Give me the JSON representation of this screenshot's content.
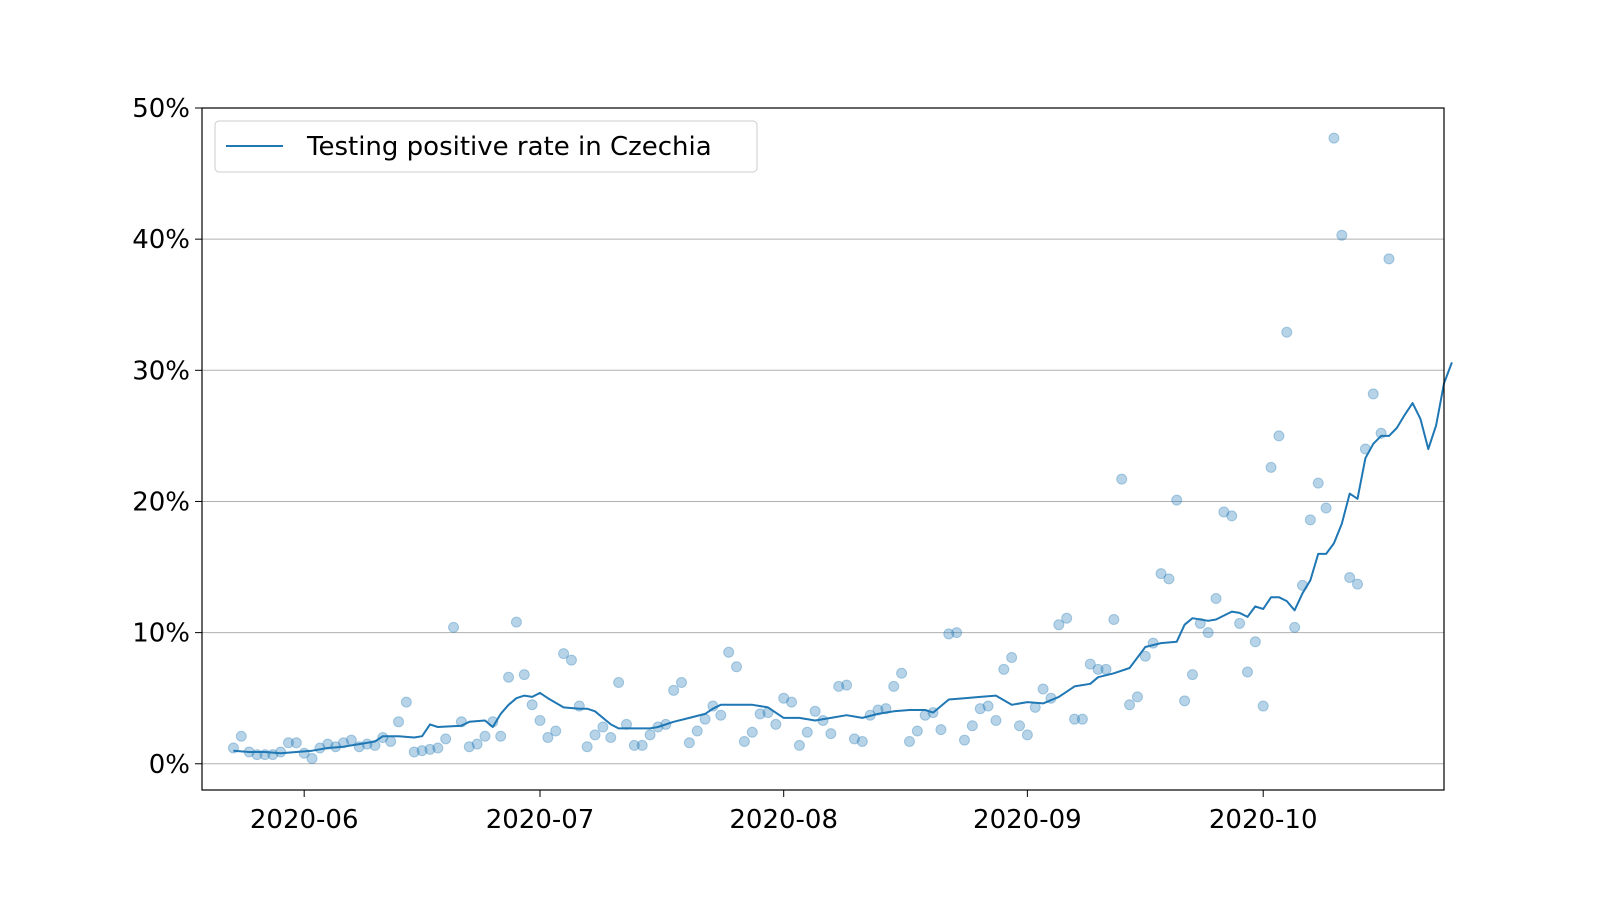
{
  "chart_data": {
    "type": "line",
    "title": "",
    "xlabel": "",
    "ylabel": "",
    "ylim": [
      -0.02,
      0.5
    ],
    "xlim": [
      "2020-05-19",
      "2020-10-24"
    ],
    "grid": {
      "y": true,
      "x": false
    },
    "legend": {
      "position": "upper-left",
      "entries": [
        "Testing positive rate in Czechia"
      ]
    },
    "x_ticks": [
      "2020-06-01",
      "2020-07-01",
      "2020-08-01",
      "2020-09-01",
      "2020-10-01"
    ],
    "x_tick_labels": [
      "2020-06",
      "2020-07",
      "2020-08",
      "2020-09",
      "2020-10"
    ],
    "y_ticks": [
      0,
      0.1,
      0.2,
      0.3,
      0.4,
      0.5
    ],
    "y_tick_labels": [
      "0%",
      "10%",
      "20%",
      "30%",
      "40%",
      "50%"
    ],
    "colors": {
      "series": "#1f77b4",
      "grid": "#b0b0b0",
      "axes": "#000000"
    },
    "series": [
      {
        "name": "Testing positive rate in Czechia",
        "kind": "line",
        "points": [
          [
            "2020-05-23",
            0.01
          ],
          [
            "2020-05-25",
            0.009
          ],
          [
            "2020-05-27",
            0.009
          ],
          [
            "2020-05-29",
            0.008
          ],
          [
            "2020-05-31",
            0.009
          ],
          [
            "2020-06-02",
            0.01
          ],
          [
            "2020-06-04",
            0.012
          ],
          [
            "2020-06-06",
            0.013
          ],
          [
            "2020-06-08",
            0.015
          ],
          [
            "2020-06-10",
            0.017
          ],
          [
            "2020-06-11",
            0.021
          ],
          [
            "2020-06-13",
            0.021
          ],
          [
            "2020-06-15",
            0.02
          ],
          [
            "2020-06-16",
            0.021
          ],
          [
            "2020-06-17",
            0.03
          ],
          [
            "2020-06-18",
            0.028
          ],
          [
            "2020-06-21",
            0.029
          ],
          [
            "2020-06-22",
            0.032
          ],
          [
            "2020-06-24",
            0.033
          ],
          [
            "2020-06-25",
            0.028
          ],
          [
            "2020-06-26",
            0.038
          ],
          [
            "2020-06-27",
            0.045
          ],
          [
            "2020-06-28",
            0.05
          ],
          [
            "2020-06-29",
            0.052
          ],
          [
            "2020-06-30",
            0.051
          ],
          [
            "2020-07-01",
            0.054
          ],
          [
            "2020-07-02",
            0.05
          ],
          [
            "2020-07-04",
            0.043
          ],
          [
            "2020-07-06",
            0.042
          ],
          [
            "2020-07-07",
            0.042
          ],
          [
            "2020-07-08",
            0.04
          ],
          [
            "2020-07-10",
            0.03
          ],
          [
            "2020-07-11",
            0.027
          ],
          [
            "2020-07-13",
            0.027
          ],
          [
            "2020-07-15",
            0.027
          ],
          [
            "2020-07-16",
            0.028
          ],
          [
            "2020-07-18",
            0.032
          ],
          [
            "2020-07-20",
            0.035
          ],
          [
            "2020-07-22",
            0.038
          ],
          [
            "2020-07-23",
            0.042
          ],
          [
            "2020-07-24",
            0.045
          ],
          [
            "2020-07-26",
            0.045
          ],
          [
            "2020-07-28",
            0.045
          ],
          [
            "2020-07-30",
            0.043
          ],
          [
            "2020-08-01",
            0.035
          ],
          [
            "2020-08-03",
            0.035
          ],
          [
            "2020-08-05",
            0.033
          ],
          [
            "2020-08-07",
            0.035
          ],
          [
            "2020-08-09",
            0.037
          ],
          [
            "2020-08-11",
            0.035
          ],
          [
            "2020-08-13",
            0.038
          ],
          [
            "2020-08-15",
            0.04
          ],
          [
            "2020-08-17",
            0.041
          ],
          [
            "2020-08-19",
            0.041
          ],
          [
            "2020-08-20",
            0.039
          ],
          [
            "2020-08-22",
            0.049
          ],
          [
            "2020-08-24",
            0.05
          ],
          [
            "2020-08-26",
            0.051
          ],
          [
            "2020-08-28",
            0.052
          ],
          [
            "2020-08-30",
            0.045
          ],
          [
            "2020-09-01",
            0.047
          ],
          [
            "2020-09-03",
            0.046
          ],
          [
            "2020-09-05",
            0.051
          ],
          [
            "2020-09-07",
            0.059
          ],
          [
            "2020-09-09",
            0.061
          ],
          [
            "2020-09-10",
            0.066
          ],
          [
            "2020-09-12",
            0.069
          ],
          [
            "2020-09-14",
            0.073
          ],
          [
            "2020-09-16",
            0.089
          ],
          [
            "2020-09-18",
            0.092
          ],
          [
            "2020-09-20",
            0.093
          ],
          [
            "2020-09-21",
            0.106
          ],
          [
            "2020-09-22",
            0.111
          ],
          [
            "2020-09-24",
            0.109
          ],
          [
            "2020-09-25",
            0.11
          ],
          [
            "2020-09-27",
            0.116
          ],
          [
            "2020-09-28",
            0.115
          ],
          [
            "2020-09-29",
            0.112
          ],
          [
            "2020-09-30",
            0.12
          ],
          [
            "2020-10-01",
            0.118
          ],
          [
            "2020-10-02",
            0.127
          ],
          [
            "2020-10-03",
            0.127
          ],
          [
            "2020-10-04",
            0.124
          ],
          [
            "2020-10-05",
            0.117
          ],
          [
            "2020-10-06",
            0.13
          ],
          [
            "2020-10-07",
            0.14
          ],
          [
            "2020-10-08",
            0.16
          ],
          [
            "2020-10-09",
            0.16
          ],
          [
            "2020-10-10",
            0.168
          ],
          [
            "2020-10-11",
            0.183
          ],
          [
            "2020-10-12",
            0.206
          ],
          [
            "2020-10-13",
            0.202
          ],
          [
            "2020-10-14",
            0.233
          ],
          [
            "2020-10-15",
            0.244
          ],
          [
            "2020-10-16",
            0.25
          ],
          [
            "2020-10-17",
            0.25
          ],
          [
            "2020-10-18",
            0.256
          ],
          [
            "2020-10-19",
            0.266
          ],
          [
            "2020-10-20",
            0.275
          ],
          [
            "2020-10-21",
            0.263
          ],
          [
            "2020-10-22",
            0.24
          ],
          [
            "2020-10-23",
            0.258
          ],
          [
            "2020-10-24",
            0.29
          ],
          [
            "2020-10-25",
            0.306
          ]
        ]
      },
      {
        "name": "",
        "kind": "scatter",
        "points": [
          [
            "2020-05-23",
            0.012
          ],
          [
            "2020-05-24",
            0.021
          ],
          [
            "2020-05-25",
            0.009
          ],
          [
            "2020-05-26",
            0.007
          ],
          [
            "2020-05-27",
            0.007
          ],
          [
            "2020-05-28",
            0.007
          ],
          [
            "2020-05-29",
            0.009
          ],
          [
            "2020-05-30",
            0.016
          ],
          [
            "2020-05-31",
            0.016
          ],
          [
            "2020-06-01",
            0.008
          ],
          [
            "2020-06-02",
            0.004
          ],
          [
            "2020-06-03",
            0.012
          ],
          [
            "2020-06-04",
            0.015
          ],
          [
            "2020-06-05",
            0.013
          ],
          [
            "2020-06-06",
            0.016
          ],
          [
            "2020-06-07",
            0.018
          ],
          [
            "2020-06-08",
            0.013
          ],
          [
            "2020-06-09",
            0.015
          ],
          [
            "2020-06-10",
            0.014
          ],
          [
            "2020-06-11",
            0.02
          ],
          [
            "2020-06-12",
            0.017
          ],
          [
            "2020-06-13",
            0.032
          ],
          [
            "2020-06-14",
            0.047
          ],
          [
            "2020-06-15",
            0.009
          ],
          [
            "2020-06-16",
            0.01
          ],
          [
            "2020-06-17",
            0.011
          ],
          [
            "2020-06-18",
            0.012
          ],
          [
            "2020-06-19",
            0.019
          ],
          [
            "2020-06-20",
            0.104
          ],
          [
            "2020-06-21",
            0.032
          ],
          [
            "2020-06-22",
            0.013
          ],
          [
            "2020-06-23",
            0.015
          ],
          [
            "2020-06-24",
            0.021
          ],
          [
            "2020-06-25",
            0.032
          ],
          [
            "2020-06-26",
            0.021
          ],
          [
            "2020-06-27",
            0.066
          ],
          [
            "2020-06-28",
            0.108
          ],
          [
            "2020-06-29",
            0.068
          ],
          [
            "2020-06-30",
            0.045
          ],
          [
            "2020-07-01",
            0.033
          ],
          [
            "2020-07-02",
            0.02
          ],
          [
            "2020-07-03",
            0.025
          ],
          [
            "2020-07-04",
            0.084
          ],
          [
            "2020-07-05",
            0.079
          ],
          [
            "2020-07-06",
            0.044
          ],
          [
            "2020-07-07",
            0.013
          ],
          [
            "2020-07-08",
            0.022
          ],
          [
            "2020-07-09",
            0.028
          ],
          [
            "2020-07-10",
            0.02
          ],
          [
            "2020-07-11",
            0.062
          ],
          [
            "2020-07-12",
            0.03
          ],
          [
            "2020-07-13",
            0.014
          ],
          [
            "2020-07-14",
            0.014
          ],
          [
            "2020-07-15",
            0.022
          ],
          [
            "2020-07-16",
            0.028
          ],
          [
            "2020-07-17",
            0.03
          ],
          [
            "2020-07-18",
            0.056
          ],
          [
            "2020-07-19",
            0.062
          ],
          [
            "2020-07-20",
            0.016
          ],
          [
            "2020-07-21",
            0.025
          ],
          [
            "2020-07-22",
            0.034
          ],
          [
            "2020-07-23",
            0.044
          ],
          [
            "2020-07-24",
            0.037
          ],
          [
            "2020-07-25",
            0.085
          ],
          [
            "2020-07-26",
            0.074
          ],
          [
            "2020-07-27",
            0.017
          ],
          [
            "2020-07-28",
            0.024
          ],
          [
            "2020-07-29",
            0.038
          ],
          [
            "2020-07-30",
            0.039
          ],
          [
            "2020-07-31",
            0.03
          ],
          [
            "2020-08-01",
            0.05
          ],
          [
            "2020-08-02",
            0.047
          ],
          [
            "2020-08-03",
            0.014
          ],
          [
            "2020-08-04",
            0.024
          ],
          [
            "2020-08-05",
            0.04
          ],
          [
            "2020-08-06",
            0.033
          ],
          [
            "2020-08-07",
            0.023
          ],
          [
            "2020-08-08",
            0.059
          ],
          [
            "2020-08-09",
            0.06
          ],
          [
            "2020-08-10",
            0.019
          ],
          [
            "2020-08-11",
            0.017
          ],
          [
            "2020-08-12",
            0.037
          ],
          [
            "2020-08-13",
            0.041
          ],
          [
            "2020-08-14",
            0.042
          ],
          [
            "2020-08-15",
            0.059
          ],
          [
            "2020-08-16",
            0.069
          ],
          [
            "2020-08-17",
            0.017
          ],
          [
            "2020-08-18",
            0.025
          ],
          [
            "2020-08-19",
            0.037
          ],
          [
            "2020-08-20",
            0.039
          ],
          [
            "2020-08-21",
            0.026
          ],
          [
            "2020-08-22",
            0.099
          ],
          [
            "2020-08-23",
            0.1
          ],
          [
            "2020-08-24",
            0.018
          ],
          [
            "2020-08-25",
            0.029
          ],
          [
            "2020-08-26",
            0.042
          ],
          [
            "2020-08-27",
            0.044
          ],
          [
            "2020-08-28",
            0.033
          ],
          [
            "2020-08-29",
            0.072
          ],
          [
            "2020-08-30",
            0.081
          ],
          [
            "2020-08-31",
            0.029
          ],
          [
            "2020-09-01",
            0.022
          ],
          [
            "2020-09-02",
            0.043
          ],
          [
            "2020-09-03",
            0.057
          ],
          [
            "2020-09-04",
            0.05
          ],
          [
            "2020-09-05",
            0.106
          ],
          [
            "2020-09-06",
            0.111
          ],
          [
            "2020-09-07",
            0.034
          ],
          [
            "2020-09-08",
            0.034
          ],
          [
            "2020-09-09",
            0.076
          ],
          [
            "2020-09-10",
            0.072
          ],
          [
            "2020-09-11",
            0.072
          ],
          [
            "2020-09-12",
            0.11
          ],
          [
            "2020-09-13",
            0.217
          ],
          [
            "2020-09-14",
            0.045
          ],
          [
            "2020-09-15",
            0.051
          ],
          [
            "2020-09-16",
            0.082
          ],
          [
            "2020-09-17",
            0.092
          ],
          [
            "2020-09-18",
            0.145
          ],
          [
            "2020-09-19",
            0.141
          ],
          [
            "2020-09-20",
            0.201
          ],
          [
            "2020-09-21",
            0.048
          ],
          [
            "2020-09-22",
            0.068
          ],
          [
            "2020-09-23",
            0.107
          ],
          [
            "2020-09-24",
            0.1
          ],
          [
            "2020-09-25",
            0.126
          ],
          [
            "2020-09-26",
            0.192
          ],
          [
            "2020-09-27",
            0.189
          ],
          [
            "2020-09-28",
            0.107
          ],
          [
            "2020-09-29",
            0.07
          ],
          [
            "2020-09-30",
            0.093
          ],
          [
            "2020-10-01",
            0.044
          ],
          [
            "2020-10-02",
            0.226
          ],
          [
            "2020-10-03",
            0.25
          ],
          [
            "2020-10-04",
            0.329
          ],
          [
            "2020-10-05",
            0.104
          ],
          [
            "2020-10-06",
            0.136
          ],
          [
            "2020-10-07",
            0.186
          ],
          [
            "2020-10-08",
            0.214
          ],
          [
            "2020-10-09",
            0.195
          ],
          [
            "2020-10-10",
            0.477
          ],
          [
            "2020-10-11",
            0.403
          ],
          [
            "2020-10-12",
            0.142
          ],
          [
            "2020-10-13",
            0.137
          ],
          [
            "2020-10-14",
            0.24
          ],
          [
            "2020-10-15",
            0.282
          ],
          [
            "2020-10-16",
            0.252
          ],
          [
            "2020-10-17",
            0.385
          ]
        ]
      }
    ]
  }
}
